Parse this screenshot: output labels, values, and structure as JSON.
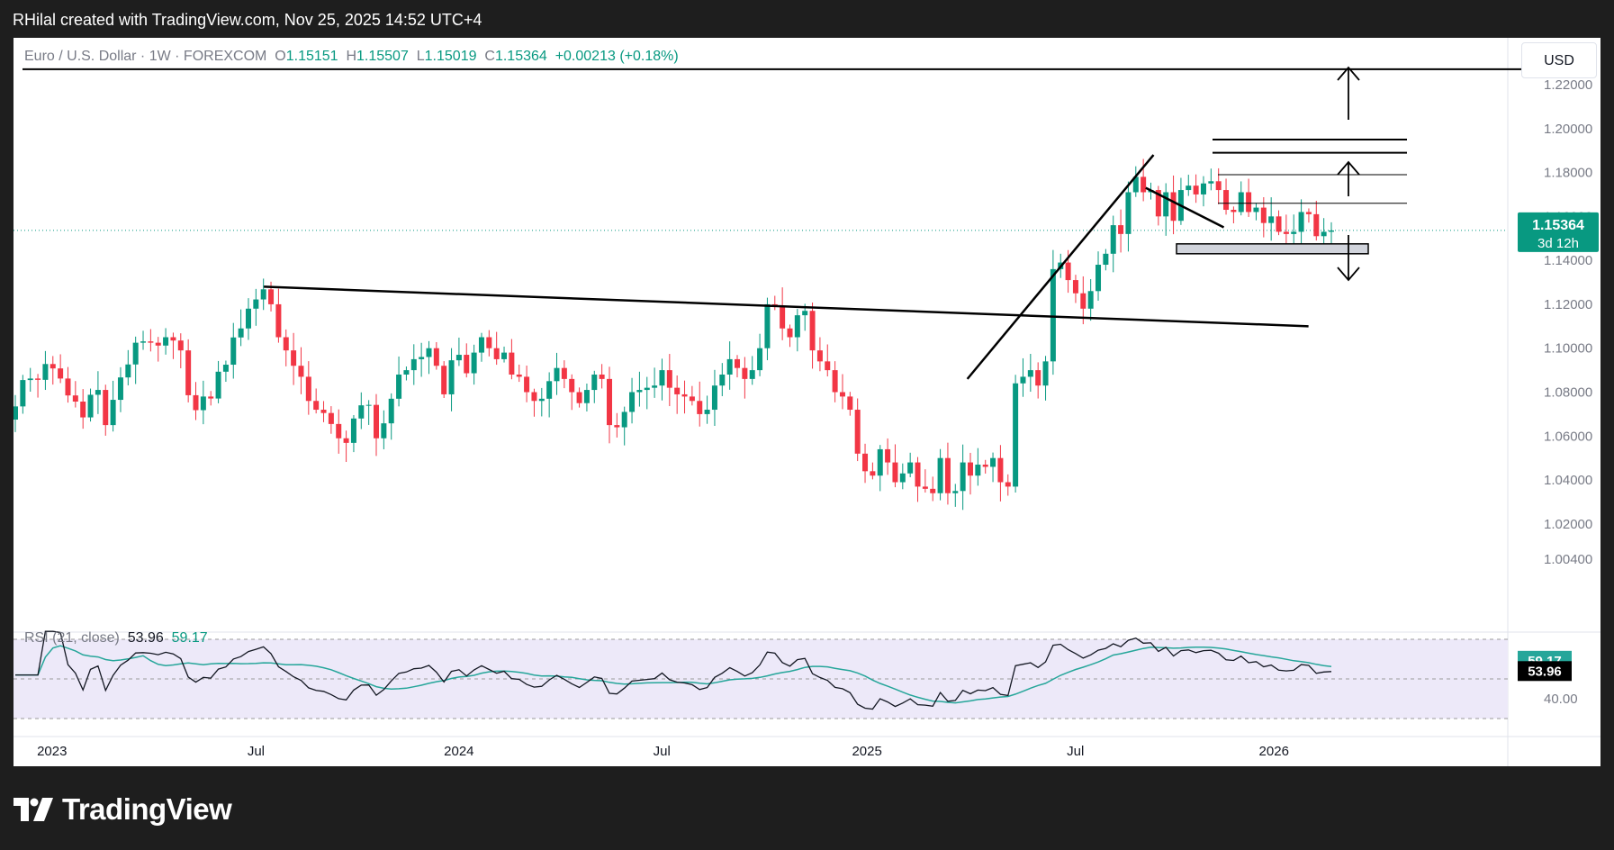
{
  "caption": "RHilal created with TradingView.com, Nov 25, 2025 14:52 UTC+4",
  "legend": {
    "symbol": "Euro / U.S. Dollar · 1W · FOREXCOM",
    "o_label": "O",
    "o": "1.15151",
    "h_label": "H",
    "h": "1.15507",
    "l_label": "L",
    "l": "1.15019",
    "c_label": "C",
    "c": "1.15364",
    "change": "+0.00213 (+0.18%)"
  },
  "currency_button": "USD",
  "price_badge": {
    "value": "1.15364",
    "countdown": "3d 12h"
  },
  "rsi_legend": {
    "name": "RSI (21, close)",
    "value": "53.96",
    "ma": "59.17"
  },
  "rsi_badges": {
    "ma": "59.17",
    "value": "53.96"
  },
  "footer": {
    "brand": "TradingView"
  },
  "colors": {
    "up": "#089981",
    "down": "#f23645",
    "rsi": "#131722",
    "rsi_ma": "#26a69a",
    "rsi_band": "#ede9f9"
  },
  "chart_data": {
    "type": "candlestick",
    "title": "Euro / U.S. Dollar · 1W · FOREXCOM",
    "price_axis": {
      "ticks": [
        "1.22000",
        "1.20000",
        "1.18000",
        "1.16000",
        "1.14000",
        "1.12000",
        "1.10000",
        "1.08000",
        "1.06000",
        "1.04000",
        "1.02000",
        "1.00400"
      ],
      "ylim": [
        0.997,
        1.229
      ]
    },
    "time_axis": {
      "ticks": [
        "2023",
        "Jul",
        "2024",
        "Jul",
        "2025",
        "Jul",
        "2026"
      ]
    },
    "last_price": 1.15364,
    "close_series": [
      1.0735,
      1.0855,
      1.0862,
      1.0856,
      1.0928,
      1.0908,
      1.0862,
      1.0785,
      1.0757,
      1.0685,
      1.0788,
      1.081,
      1.065,
      1.0765,
      1.0867,
      1.0926,
      1.1025,
      1.1031,
      1.1025,
      1.1012,
      1.105,
      1.1035,
      1.099,
      1.0786,
      1.0718,
      1.078,
      1.0771,
      1.0893,
      1.0925,
      1.1049,
      1.109,
      1.118,
      1.1222,
      1.1268,
      1.12,
      1.105,
      1.099,
      1.092,
      1.087,
      1.076,
      1.072,
      1.0705,
      1.0655,
      1.059,
      1.0569,
      1.068,
      1.074,
      1.0742,
      1.059,
      1.0658,
      1.077,
      1.088,
      1.09,
      1.095,
      1.096,
      1.1,
      1.092,
      1.079,
      1.0945,
      1.097,
      1.0886,
      1.098,
      1.105,
      1.1,
      1.095,
      1.098,
      1.088,
      1.087,
      1.08,
      1.076,
      1.077,
      1.085,
      1.091,
      1.086,
      1.08,
      1.075,
      1.081,
      1.088,
      1.086,
      1.065,
      1.064,
      1.071,
      1.08,
      1.081,
      1.082,
      1.083,
      1.09,
      1.082,
      1.079,
      1.078,
      1.076,
      1.07,
      1.072,
      1.083,
      1.088,
      1.095,
      1.091,
      1.086,
      1.09,
      1.1,
      1.12,
      1.119,
      1.109,
      1.105,
      1.115,
      1.117,
      1.099,
      1.094,
      1.09,
      1.08,
      1.078,
      1.072,
      1.052,
      1.044,
      1.042,
      1.054,
      1.048,
      1.039,
      1.043,
      1.048,
      1.037,
      1.036,
      1.034,
      1.05,
      1.034,
      1.035,
      1.048,
      1.042,
      1.047,
      1.046,
      1.05,
      1.039,
      1.037,
      1.084,
      1.087,
      1.09,
      1.083,
      1.094,
      1.136,
      1.139,
      1.131,
      1.125,
      1.118,
      1.126,
      1.138,
      1.143,
      1.156,
      1.152,
      1.171,
      1.178,
      1.171,
      1.172,
      1.16,
      1.171,
      1.158,
      1.172,
      1.174,
      1.17,
      1.175,
      1.176,
      1.172,
      1.163,
      1.162,
      1.171,
      1.162,
      1.164,
      1.157,
      1.16,
      1.153,
      1.152,
      1.153,
      1.162,
      1.161,
      1.151,
      1.153,
      1.1536
    ],
    "trendlines": [
      {
        "from": [
          "2023-07-10",
          1.128
        ],
        "to": [
          "2026-02-01",
          1.11
        ]
      },
      {
        "from": [
          "2025-04-01",
          1.086
        ],
        "to": [
          "2025-09-15",
          1.188
        ]
      },
      {
        "from": [
          "2025-09-08",
          1.173
        ],
        "to": [
          "2025-11-17",
          1.155
        ]
      }
    ],
    "levels": [
      1.227,
      1.195,
      1.189,
      1.179,
      1.166
    ],
    "support_zone": [
      1.143,
      1.1475
    ],
    "rsi": {
      "period": 21,
      "source": "close",
      "value": 53.96,
      "ma_value": 59.17,
      "axis_ticks": [
        "40.00"
      ]
    }
  }
}
